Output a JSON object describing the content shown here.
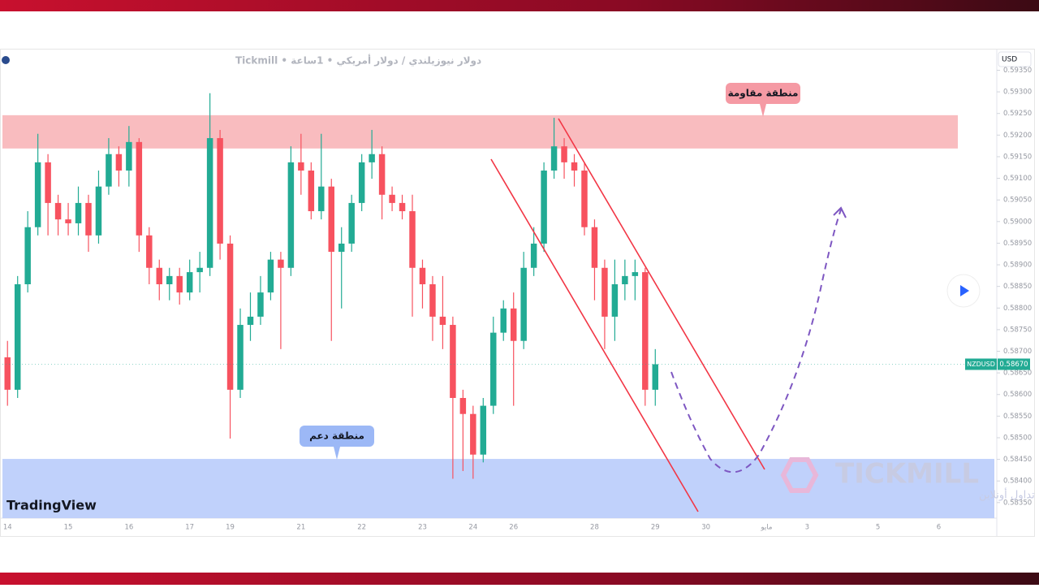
{
  "chart_data": {
    "type": "candlestick",
    "title": "دولار نيوزيلندي / دولار أمريكي • 1ساعة • Tickmill",
    "currency": "USD",
    "categories": [
      "14",
      null,
      null,
      null,
      null,
      null,
      "15",
      null,
      null,
      null,
      null,
      null,
      "16",
      null,
      null,
      null,
      null,
      null,
      "17",
      null,
      null,
      null,
      "19",
      null,
      null,
      null,
      null,
      null,
      null,
      "21",
      null,
      null,
      null,
      null,
      null,
      "22",
      null,
      null,
      null,
      null,
      null,
      "23",
      null,
      null,
      null,
      null,
      "24",
      null,
      null,
      null,
      "26",
      null,
      null,
      null,
      null,
      null,
      null,
      null,
      "28",
      null,
      null,
      null,
      null,
      null,
      "29",
      null,
      null,
      null,
      null,
      "30",
      null,
      null,
      null,
      null,
      null,
      "مايو",
      null,
      null,
      null,
      "3",
      null,
      null,
      null,
      null,
      null,
      null,
      "5",
      null,
      null,
      null,
      null,
      null,
      "6",
      null,
      null,
      null,
      null,
      null
    ],
    "open": [
      0.58686,
      0.58611,
      0.58855,
      0.58987,
      0.59137,
      0.59043,
      0.59005,
      0.58996,
      0.59043,
      0.58968,
      0.59081,
      0.59156,
      0.59118,
      0.59184,
      0.58968,
      0.58893,
      0.58855,
      0.58874,
      0.58836,
      0.58883,
      0.58893,
      0.59193,
      0.58949,
      0.58611,
      0.58761,
      0.5878,
      0.58836,
      0.58912,
      0.58893,
      0.59137,
      0.59118,
      0.59024,
      0.59081,
      0.5893,
      0.58949,
      0.59043,
      0.59137,
      0.59156,
      0.59062,
      0.59043,
      0.59024,
      0.58893,
      0.58855,
      0.5878,
      0.58761,
      0.58592,
      0.58555,
      0.58461,
      0.58574,
      0.58743,
      0.58799,
      0.58724,
      0.58893,
      0.58949,
      0.59118,
      0.59174,
      0.59137,
      0.59118,
      0.58987,
      0.58893,
      0.5878,
      0.58855,
      0.58874,
      0.58883,
      0.58611,
      null,
      null,
      null,
      null,
      null,
      null,
      null,
      null,
      null,
      null,
      null,
      null,
      null,
      null,
      null,
      null,
      null,
      null,
      null,
      null,
      null,
      null,
      null,
      null,
      null,
      null,
      null,
      null,
      null,
      null,
      null,
      null,
      null
    ],
    "high": [
      0.58724,
      0.58874,
      0.59024,
      0.59203,
      0.59156,
      0.59062,
      0.59043,
      0.59081,
      0.59062,
      0.59118,
      0.59193,
      0.59174,
      0.59221,
      0.59193,
      0.58987,
      0.58912,
      0.58893,
      0.58893,
      0.58912,
      0.5893,
      0.59297,
      0.59212,
      0.58968,
      0.58799,
      0.58836,
      0.58874,
      0.5893,
      0.5893,
      0.59174,
      0.59203,
      0.59137,
      0.59203,
      0.59099,
      0.58987,
      0.59062,
      0.59156,
      0.59212,
      0.59174,
      0.59081,
      0.59062,
      0.59062,
      0.58912,
      0.58874,
      0.58874,
      0.5878,
      0.58611,
      0.58574,
      0.58592,
      0.5878,
      0.58818,
      0.58836,
      0.5893,
      0.58987,
      0.59137,
      0.5924,
      0.59193,
      0.59156,
      0.59137,
      0.59005,
      0.58912,
      0.58912,
      0.58912,
      0.58912,
      0.58893,
      0.58705,
      null,
      null,
      null,
      null,
      null,
      null,
      null,
      null,
      null,
      null,
      null,
      null,
      null,
      null,
      null,
      null,
      null,
      null,
      null,
      null,
      null,
      null,
      null,
      null,
      null,
      null,
      null,
      null,
      null,
      null,
      null,
      null,
      null
    ],
    "low": [
      0.58574,
      0.58592,
      0.58836,
      0.58968,
      0.58968,
      0.58968,
      0.58968,
      0.58968,
      0.5893,
      0.58949,
      0.59062,
      0.59081,
      0.59081,
      0.5893,
      0.58855,
      0.58818,
      0.58818,
      0.58808,
      0.58818,
      0.58836,
      0.58874,
      0.58912,
      0.58498,
      0.58592,
      0.58724,
      0.58761,
      0.58818,
      0.58705,
      0.58874,
      0.59062,
      0.59005,
      0.59005,
      0.58724,
      0.58799,
      0.5893,
      0.59024,
      0.59099,
      0.59005,
      0.59024,
      0.59005,
      0.5878,
      0.58799,
      0.58724,
      0.58705,
      0.58405,
      0.58423,
      0.58405,
      0.58443,
      0.58555,
      0.58724,
      0.58574,
      0.58705,
      0.58874,
      0.5893,
      0.59099,
      0.59099,
      0.59081,
      0.58968,
      0.58818,
      0.58705,
      0.58724,
      0.58818,
      0.58818,
      0.58574,
      0.58574,
      null,
      null,
      null,
      null,
      null,
      null,
      null,
      null,
      null,
      null,
      null,
      null,
      null,
      null,
      null,
      null,
      null,
      null,
      null,
      null,
      null,
      null,
      null,
      null,
      null,
      null,
      null,
      null,
      null,
      null,
      null,
      null,
      null
    ],
    "close": [
      0.58611,
      0.58855,
      0.58987,
      0.59137,
      0.59043,
      0.59005,
      0.58996,
      0.59043,
      0.58968,
      0.59081,
      0.59156,
      0.59118,
      0.59184,
      0.58968,
      0.58893,
      0.58855,
      0.58874,
      0.58836,
      0.58883,
      0.58893,
      0.59193,
      0.58949,
      0.58611,
      0.58761,
      0.5878,
      0.58836,
      0.58912,
      0.58893,
      0.59137,
      0.59118,
      0.59024,
      0.59081,
      0.5893,
      0.58949,
      0.59043,
      0.59137,
      0.59156,
      0.59062,
      0.59043,
      0.59024,
      0.58893,
      0.58855,
      0.5878,
      0.58761,
      0.58592,
      0.58555,
      0.58461,
      0.58574,
      0.58743,
      0.58799,
      0.58724,
      0.58893,
      0.58949,
      0.59118,
      0.59174,
      0.59137,
      0.59118,
      0.58987,
      0.58893,
      0.5878,
      0.58855,
      0.58874,
      0.58883,
      0.58611,
      0.5867,
      null,
      null,
      null,
      null,
      null,
      null,
      null,
      null,
      null,
      null,
      null,
      null,
      null,
      null,
      null,
      null,
      null,
      null,
      null,
      null,
      null,
      null,
      null,
      null,
      null,
      null,
      null,
      null,
      null,
      null,
      null,
      null,
      null
    ],
    "up_color": "#22ab94",
    "down_color": "#f7525f",
    "last_label": {
      "symbol": "NZDUSD",
      "price": "0.58670"
    },
    "ylim": [
      0.58314,
      0.59396
    ],
    "yticks": [
      {
        "value": 0.5835,
        "label": "0.58350"
      },
      {
        "value": 0.584,
        "label": "0.58400"
      },
      {
        "value": 0.5845,
        "label": "0.58450"
      },
      {
        "value": 0.585,
        "label": "0.58500"
      },
      {
        "value": 0.5855,
        "label": "0.58550"
      },
      {
        "value": 0.586,
        "label": "0.58600"
      },
      {
        "value": 0.5865,
        "label": "0.58650"
      },
      {
        "value": 0.587,
        "label": "0.58700"
      },
      {
        "value": 0.5875,
        "label": "0.58750"
      },
      {
        "value": 0.588,
        "label": "0.58800"
      },
      {
        "value": 0.5885,
        "label": "0.58850"
      },
      {
        "value": 0.589,
        "label": "0.58900"
      },
      {
        "value": 0.5895,
        "label": "0.58950"
      },
      {
        "value": 0.59,
        "label": "0.59000"
      },
      {
        "value": 0.5905,
        "label": "0.59050"
      },
      {
        "value": 0.591,
        "label": "0.59100"
      },
      {
        "value": 0.5915,
        "label": "0.59150"
      },
      {
        "value": 0.592,
        "label": "0.59200"
      },
      {
        "value": 0.5925,
        "label": "0.59250"
      },
      {
        "value": 0.593,
        "label": "0.59300"
      },
      {
        "value": 0.5935,
        "label": "0.59350"
      }
    ],
    "zones": [
      {
        "label": "منطقة مقاومة",
        "from": 0.59169,
        "to": 0.59246,
        "color": "#f9b8bc"
      },
      {
        "label": "منطقة دعم",
        "from": 0.58314,
        "to": 0.58451,
        "color": "#bdcffb"
      }
    ],
    "watermark": {
      "brand": "TradingView",
      "broker": "TICKMILL",
      "tagline": "تداول أونلاين"
    }
  }
}
